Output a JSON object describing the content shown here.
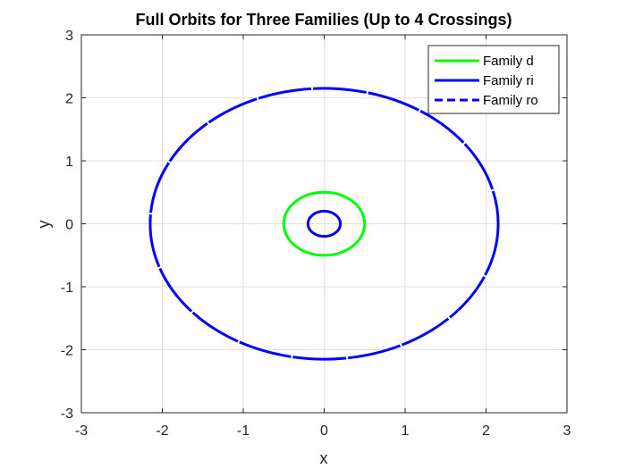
{
  "chart_data": {
    "type": "line",
    "title": "Full Orbits for Three Families (Up to 4 Crossings)",
    "xlabel": "x",
    "ylabel": "y",
    "xlim": [
      -3,
      3
    ],
    "ylim": [
      -3,
      3
    ],
    "xticks": [
      -3,
      -2,
      -1,
      0,
      1,
      2,
      3
    ],
    "yticks": [
      -3,
      -2,
      -1,
      0,
      1,
      2,
      3
    ],
    "xtick_labels": [
      "-3",
      "-2",
      "-1",
      "0",
      "1",
      "2",
      "3"
    ],
    "ytick_labels": [
      "-3",
      "-2",
      "-1",
      "0",
      "1",
      "2",
      "3"
    ],
    "grid": true,
    "legend_position": "top-right",
    "series": [
      {
        "name": "Family d",
        "shape": "ellipse",
        "center": [
          0,
          0
        ],
        "rx": 0.5,
        "ry": 0.5,
        "color": "#00ff00",
        "style": "solid"
      },
      {
        "name": "Family ri",
        "shape": "ellipse",
        "center": [
          0,
          0
        ],
        "rx": 0.2,
        "ry": 0.2,
        "color": "#0000ff",
        "style": "solid"
      },
      {
        "name": "Family ro",
        "shape": "ellipse",
        "center": [
          0,
          0
        ],
        "rx": 2.15,
        "ry": 2.15,
        "color": "#0000ff",
        "style": "dashed"
      }
    ]
  }
}
